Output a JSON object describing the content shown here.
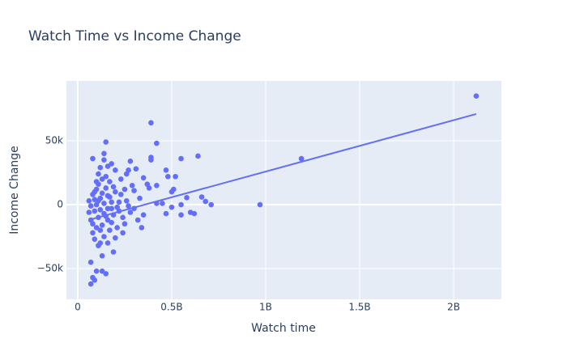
{
  "chart_data": {
    "type": "scatter",
    "title": "Watch Time vs Income Change",
    "x_label": "Watch time",
    "y_label": "Income Change",
    "color": "#636efa",
    "grid": true,
    "xlim": [
      -60000000,
      2254000000
    ],
    "ylim": [
      -74000,
      96800
    ],
    "xticks": [
      0,
      {
        "value": 500000000,
        "label": "0.5B"
      },
      {
        "value": 1000000000,
        "label": "1B"
      },
      {
        "value": 1500000000,
        "label": "1.5B"
      },
      {
        "value": 2000000000,
        "label": "2B"
      }
    ],
    "yticks": [
      {
        "value": -50000,
        "label": "−50k"
      },
      0,
      {
        "value": 50000,
        "label": "50k"
      }
    ],
    "x": [
      2120000000,
      1190000000,
      970000000,
      710000000,
      680000000,
      660000000,
      640000000,
      620000000,
      600000000,
      580000000,
      550000000,
      550000000,
      550000000,
      520000000,
      510000000,
      500000000,
      500000000,
      480000000,
      470000000,
      470000000,
      450000000,
      420000000,
      420000000,
      420000000,
      390000000,
      390000000,
      390000000,
      380000000,
      370000000,
      350000000,
      340000000,
      320000000,
      310000000,
      300000000,
      280000000,
      270000000,
      260000000,
      250000000,
      240000000,
      220000000,
      70000000,
      80000000,
      90000000,
      100000000,
      130000000,
      150000000,
      70000000,
      130000000,
      190000000,
      110000000,
      120000000,
      160000000,
      90000000,
      140000000,
      200000000,
      80000000,
      170000000,
      100000000,
      130000000,
      180000000,
      70000000,
      110000000,
      150000000,
      190000000,
      60000000,
      90000000,
      120000000,
      160000000,
      210000000,
      70000000,
      100000000,
      140000000,
      180000000,
      60000000,
      90000000,
      120000000,
      170000000,
      80000000,
      130000000,
      200000000,
      100000000,
      150000000,
      190000000,
      110000000,
      170000000,
      100000000,
      130000000,
      150000000,
      110000000,
      200000000,
      120000000,
      160000000,
      180000000,
      140000000,
      80000000,
      140000000,
      150000000,
      220000000,
      230000000,
      240000000,
      260000000,
      280000000,
      290000000,
      300000000,
      330000000,
      350000000,
      230000000,
      210000000,
      250000000,
      270000000,
      80000000,
      160000000,
      120000000,
      140000000,
      180000000,
      110000000,
      90000000,
      160000000
    ],
    "y": [
      85000,
      36000,
      0,
      0,
      2500,
      6000,
      38000,
      -7000,
      -6000,
      5500,
      36000,
      -8000,
      0,
      22000,
      12000,
      10000,
      -2000,
      22000,
      27000,
      -7000,
      1000,
      48000,
      15000,
      1000,
      64000,
      37000,
      35000,
      13000,
      16000,
      21000,
      -18000,
      -12000,
      28000,
      11000,
      34000,
      27000,
      24000,
      -15000,
      -22000,
      2000,
      -62000,
      -57000,
      -59000,
      -52000,
      -52000,
      -54000,
      -45000,
      -40000,
      -37000,
      -32000,
      -30000,
      -30000,
      -27000,
      -25000,
      -26000,
      -22000,
      -20000,
      -18000,
      -16000,
      -14000,
      -12000,
      -10000,
      -9000,
      -8000,
      -6000,
      -5000,
      -4000,
      -3000,
      -2000,
      -1000,
      0,
      1000,
      2000,
      3000,
      4000,
      5000,
      6000,
      8000,
      9000,
      10000,
      12000,
      13000,
      14000,
      16000,
      18000,
      18000,
      20000,
      22000,
      24000,
      27000,
      29000,
      30000,
      32000,
      35000,
      36000,
      40000,
      49000,
      -5000,
      8000,
      -10000,
      3000,
      -6000,
      15000,
      -3000,
      5000,
      -8000,
      20000,
      -18000,
      12000,
      -1000,
      -15000,
      -12000,
      -20000,
      -7000,
      -3000,
      3000,
      10000,
      7000
    ],
    "trendline": {
      "x": [
        60000000,
        2120000000
      ],
      "y": [
        -11900,
        70900
      ]
    }
  }
}
